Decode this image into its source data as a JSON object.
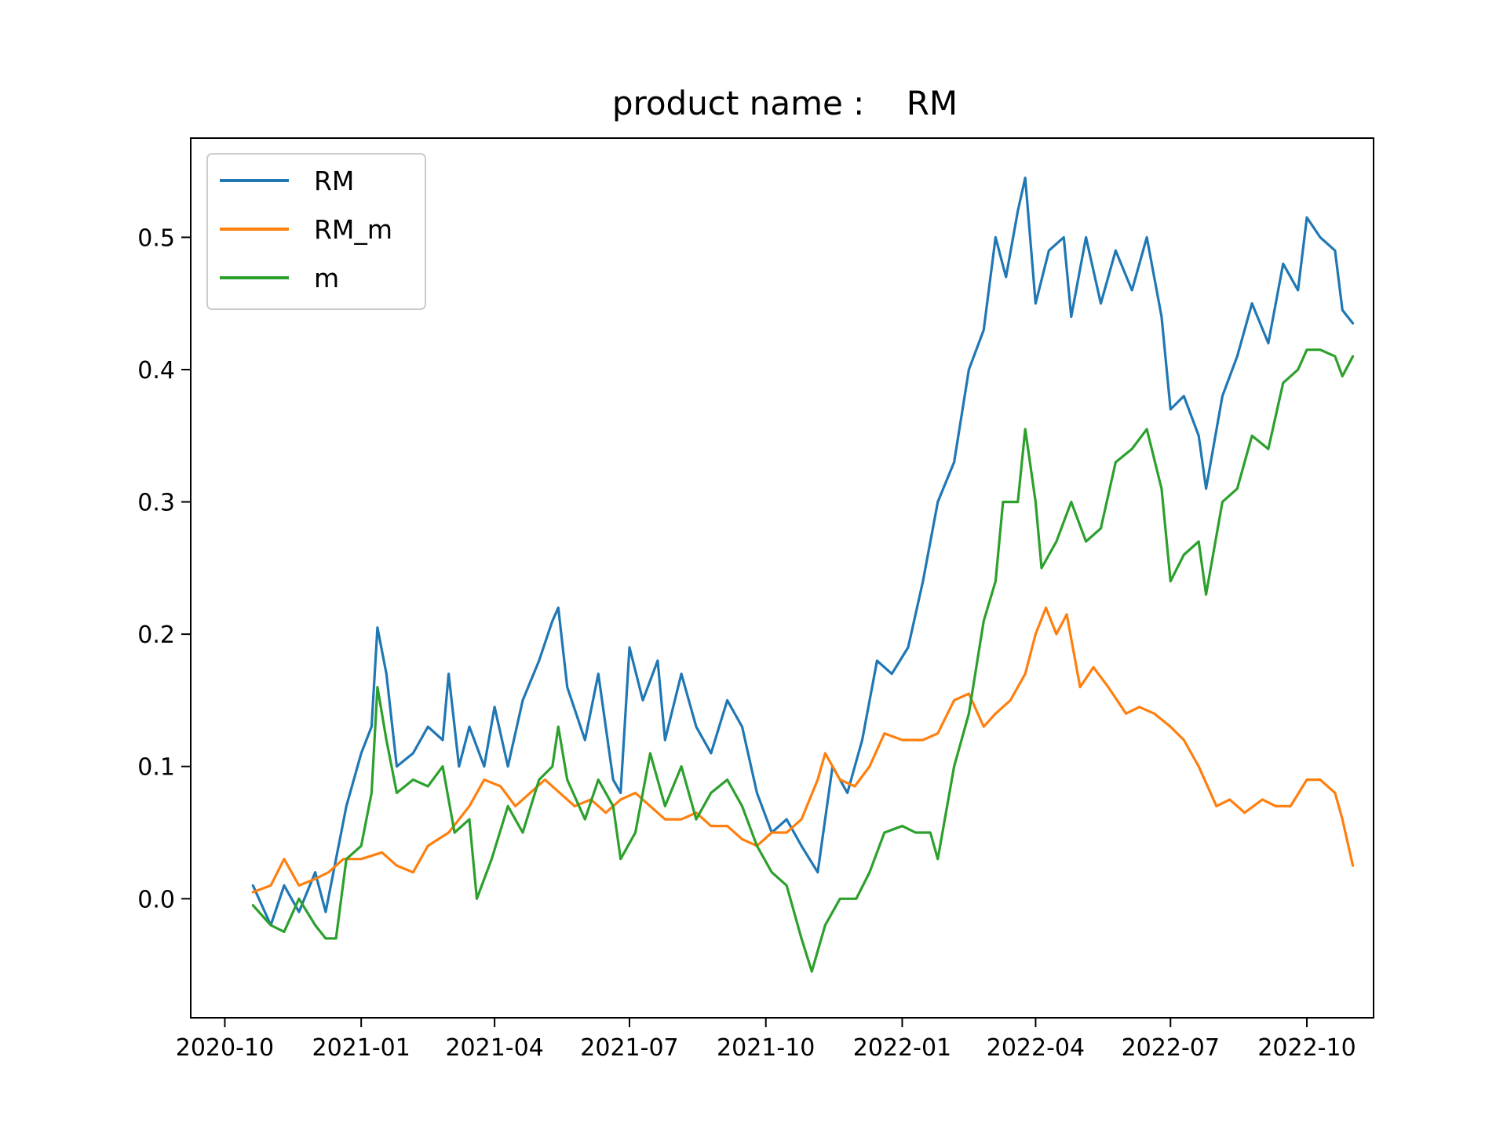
{
  "chart_data": {
    "type": "line",
    "title": "product name :    RM",
    "xlabel": "",
    "ylabel": "",
    "x_range": [
      "2020-09-08",
      "2022-11-15"
    ],
    "ylim": [
      -0.09,
      0.575
    ],
    "x_ticks": [
      "2020-10",
      "2021-01",
      "2021-04",
      "2021-07",
      "2021-10",
      "2022-01",
      "2022-04",
      "2022-07",
      "2022-10"
    ],
    "y_ticks": [
      "0.0",
      "0.1",
      "0.2",
      "0.3",
      "0.4",
      "0.5"
    ],
    "legend_position": "upper-left",
    "grid": false,
    "series": [
      {
        "name": "RM",
        "color": "#1f77b4",
        "points": [
          [
            "2020-10-20",
            0.01
          ],
          [
            "2020-11-01",
            -0.02
          ],
          [
            "2020-11-10",
            0.01
          ],
          [
            "2020-11-20",
            -0.01
          ],
          [
            "2020-12-01",
            0.02
          ],
          [
            "2020-12-08",
            -0.01
          ],
          [
            "2020-12-15",
            0.03
          ],
          [
            "2020-12-22",
            0.07
          ],
          [
            "2021-01-01",
            0.11
          ],
          [
            "2021-01-08",
            0.13
          ],
          [
            "2021-01-12",
            0.205
          ],
          [
            "2021-01-18",
            0.17
          ],
          [
            "2021-01-25",
            0.1
          ],
          [
            "2021-02-05",
            0.11
          ],
          [
            "2021-02-15",
            0.13
          ],
          [
            "2021-02-25",
            0.12
          ],
          [
            "2021-03-01",
            0.17
          ],
          [
            "2021-03-08",
            0.1
          ],
          [
            "2021-03-15",
            0.13
          ],
          [
            "2021-03-25",
            0.1
          ],
          [
            "2021-04-01",
            0.145
          ],
          [
            "2021-04-10",
            0.1
          ],
          [
            "2021-04-20",
            0.15
          ],
          [
            "2021-05-01",
            0.18
          ],
          [
            "2021-05-10",
            0.21
          ],
          [
            "2021-05-14",
            0.22
          ],
          [
            "2021-05-20",
            0.16
          ],
          [
            "2021-06-01",
            0.12
          ],
          [
            "2021-06-10",
            0.17
          ],
          [
            "2021-06-20",
            0.09
          ],
          [
            "2021-06-25",
            0.08
          ],
          [
            "2021-07-01",
            0.19
          ],
          [
            "2021-07-10",
            0.15
          ],
          [
            "2021-07-20",
            0.18
          ],
          [
            "2021-07-25",
            0.12
          ],
          [
            "2021-08-05",
            0.17
          ],
          [
            "2021-08-15",
            0.13
          ],
          [
            "2021-08-25",
            0.11
          ],
          [
            "2021-09-05",
            0.15
          ],
          [
            "2021-09-15",
            0.13
          ],
          [
            "2021-09-25",
            0.08
          ],
          [
            "2021-10-05",
            0.05
          ],
          [
            "2021-10-15",
            0.06
          ],
          [
            "2021-10-25",
            0.04
          ],
          [
            "2021-11-05",
            0.02
          ],
          [
            "2021-11-15",
            0.1
          ],
          [
            "2021-11-25",
            0.08
          ],
          [
            "2021-12-05",
            0.12
          ],
          [
            "2021-12-15",
            0.18
          ],
          [
            "2021-12-25",
            0.17
          ],
          [
            "2022-01-05",
            0.19
          ],
          [
            "2022-01-15",
            0.24
          ],
          [
            "2022-01-25",
            0.3
          ],
          [
            "2022-02-05",
            0.33
          ],
          [
            "2022-02-15",
            0.4
          ],
          [
            "2022-02-25",
            0.43
          ],
          [
            "2022-03-05",
            0.5
          ],
          [
            "2022-03-12",
            0.47
          ],
          [
            "2022-03-20",
            0.52
          ],
          [
            "2022-03-25",
            0.545
          ],
          [
            "2022-04-01",
            0.45
          ],
          [
            "2022-04-10",
            0.49
          ],
          [
            "2022-04-20",
            0.5
          ],
          [
            "2022-04-25",
            0.44
          ],
          [
            "2022-05-05",
            0.5
          ],
          [
            "2022-05-15",
            0.45
          ],
          [
            "2022-05-25",
            0.49
          ],
          [
            "2022-06-05",
            0.46
          ],
          [
            "2022-06-15",
            0.5
          ],
          [
            "2022-06-25",
            0.44
          ],
          [
            "2022-07-01",
            0.37
          ],
          [
            "2022-07-10",
            0.38
          ],
          [
            "2022-07-20",
            0.35
          ],
          [
            "2022-07-25",
            0.31
          ],
          [
            "2022-08-05",
            0.38
          ],
          [
            "2022-08-15",
            0.41
          ],
          [
            "2022-08-25",
            0.45
          ],
          [
            "2022-09-05",
            0.42
          ],
          [
            "2022-09-15",
            0.48
          ],
          [
            "2022-09-25",
            0.46
          ],
          [
            "2022-10-01",
            0.515
          ],
          [
            "2022-10-10",
            0.5
          ],
          [
            "2022-10-20",
            0.49
          ],
          [
            "2022-10-25",
            0.445
          ],
          [
            "2022-11-01",
            0.435
          ]
        ]
      },
      {
        "name": "RM_m",
        "color": "#ff7f0e",
        "points": [
          [
            "2020-10-20",
            0.005
          ],
          [
            "2020-11-01",
            0.01
          ],
          [
            "2020-11-10",
            0.03
          ],
          [
            "2020-11-20",
            0.01
          ],
          [
            "2020-12-01",
            0.015
          ],
          [
            "2020-12-10",
            0.02
          ],
          [
            "2020-12-20",
            0.03
          ],
          [
            "2021-01-01",
            0.03
          ],
          [
            "2021-01-15",
            0.035
          ],
          [
            "2021-01-25",
            0.025
          ],
          [
            "2021-02-05",
            0.02
          ],
          [
            "2021-02-15",
            0.04
          ],
          [
            "2021-03-01",
            0.05
          ],
          [
            "2021-03-15",
            0.07
          ],
          [
            "2021-03-25",
            0.09
          ],
          [
            "2021-04-05",
            0.085
          ],
          [
            "2021-04-15",
            0.07
          ],
          [
            "2021-04-25",
            0.08
          ],
          [
            "2021-05-05",
            0.09
          ],
          [
            "2021-05-15",
            0.08
          ],
          [
            "2021-05-25",
            0.07
          ],
          [
            "2021-06-05",
            0.075
          ],
          [
            "2021-06-15",
            0.065
          ],
          [
            "2021-06-25",
            0.075
          ],
          [
            "2021-07-05",
            0.08
          ],
          [
            "2021-07-15",
            0.07
          ],
          [
            "2021-07-25",
            0.06
          ],
          [
            "2021-08-05",
            0.06
          ],
          [
            "2021-08-15",
            0.065
          ],
          [
            "2021-08-25",
            0.055
          ],
          [
            "2021-09-05",
            0.055
          ],
          [
            "2021-09-15",
            0.045
          ],
          [
            "2021-09-25",
            0.04
          ],
          [
            "2021-10-05",
            0.05
          ],
          [
            "2021-10-15",
            0.05
          ],
          [
            "2021-10-25",
            0.06
          ],
          [
            "2021-11-05",
            0.09
          ],
          [
            "2021-11-10",
            0.11
          ],
          [
            "2021-11-20",
            0.09
          ],
          [
            "2021-11-30",
            0.085
          ],
          [
            "2021-12-10",
            0.1
          ],
          [
            "2021-12-20",
            0.125
          ],
          [
            "2022-01-01",
            0.12
          ],
          [
            "2022-01-15",
            0.12
          ],
          [
            "2022-01-25",
            0.125
          ],
          [
            "2022-02-05",
            0.15
          ],
          [
            "2022-02-15",
            0.155
          ],
          [
            "2022-02-25",
            0.13
          ],
          [
            "2022-03-05",
            0.14
          ],
          [
            "2022-03-15",
            0.15
          ],
          [
            "2022-03-25",
            0.17
          ],
          [
            "2022-04-01",
            0.2
          ],
          [
            "2022-04-08",
            0.22
          ],
          [
            "2022-04-15",
            0.2
          ],
          [
            "2022-04-22",
            0.215
          ],
          [
            "2022-05-01",
            0.16
          ],
          [
            "2022-05-10",
            0.175
          ],
          [
            "2022-05-20",
            0.16
          ],
          [
            "2022-06-01",
            0.14
          ],
          [
            "2022-06-10",
            0.145
          ],
          [
            "2022-06-20",
            0.14
          ],
          [
            "2022-07-01",
            0.13
          ],
          [
            "2022-07-10",
            0.12
          ],
          [
            "2022-07-20",
            0.1
          ],
          [
            "2022-08-01",
            0.07
          ],
          [
            "2022-08-10",
            0.075
          ],
          [
            "2022-08-20",
            0.065
          ],
          [
            "2022-09-01",
            0.075
          ],
          [
            "2022-09-10",
            0.07
          ],
          [
            "2022-09-20",
            0.07
          ],
          [
            "2022-10-01",
            0.09
          ],
          [
            "2022-10-10",
            0.09
          ],
          [
            "2022-10-20",
            0.08
          ],
          [
            "2022-10-25",
            0.06
          ],
          [
            "2022-11-01",
            0.025
          ]
        ]
      },
      {
        "name": "m",
        "color": "#2ca02c",
        "points": [
          [
            "2020-10-20",
            -0.005
          ],
          [
            "2020-11-01",
            -0.02
          ],
          [
            "2020-11-10",
            -0.025
          ],
          [
            "2020-11-20",
            0.0
          ],
          [
            "2020-12-01",
            -0.02
          ],
          [
            "2020-12-08",
            -0.03
          ],
          [
            "2020-12-15",
            -0.03
          ],
          [
            "2020-12-22",
            0.03
          ],
          [
            "2021-01-01",
            0.04
          ],
          [
            "2021-01-08",
            0.08
          ],
          [
            "2021-01-12",
            0.16
          ],
          [
            "2021-01-18",
            0.12
          ],
          [
            "2021-01-25",
            0.08
          ],
          [
            "2021-02-05",
            0.09
          ],
          [
            "2021-02-15",
            0.085
          ],
          [
            "2021-02-25",
            0.1
          ],
          [
            "2021-03-05",
            0.05
          ],
          [
            "2021-03-15",
            0.06
          ],
          [
            "2021-03-20",
            0.0
          ],
          [
            "2021-03-30",
            0.03
          ],
          [
            "2021-04-10",
            0.07
          ],
          [
            "2021-04-20",
            0.05
          ],
          [
            "2021-05-01",
            0.09
          ],
          [
            "2021-05-10",
            0.1
          ],
          [
            "2021-05-14",
            0.13
          ],
          [
            "2021-05-20",
            0.09
          ],
          [
            "2021-06-01",
            0.06
          ],
          [
            "2021-06-10",
            0.09
          ],
          [
            "2021-06-20",
            0.07
          ],
          [
            "2021-06-25",
            0.03
          ],
          [
            "2021-07-05",
            0.05
          ],
          [
            "2021-07-15",
            0.11
          ],
          [
            "2021-07-25",
            0.07
          ],
          [
            "2021-08-05",
            0.1
          ],
          [
            "2021-08-15",
            0.06
          ],
          [
            "2021-08-25",
            0.08
          ],
          [
            "2021-09-05",
            0.09
          ],
          [
            "2021-09-15",
            0.07
          ],
          [
            "2021-09-25",
            0.04
          ],
          [
            "2021-10-05",
            0.02
          ],
          [
            "2021-10-15",
            0.01
          ],
          [
            "2021-10-25",
            -0.03
          ],
          [
            "2021-11-01",
            -0.055
          ],
          [
            "2021-11-10",
            -0.02
          ],
          [
            "2021-11-20",
            0.0
          ],
          [
            "2021-12-01",
            0.0
          ],
          [
            "2021-12-10",
            0.02
          ],
          [
            "2021-12-20",
            0.05
          ],
          [
            "2022-01-01",
            0.055
          ],
          [
            "2022-01-10",
            0.05
          ],
          [
            "2022-01-20",
            0.05
          ],
          [
            "2022-01-25",
            0.03
          ],
          [
            "2022-02-05",
            0.1
          ],
          [
            "2022-02-15",
            0.14
          ],
          [
            "2022-02-25",
            0.21
          ],
          [
            "2022-03-05",
            0.24
          ],
          [
            "2022-03-10",
            0.3
          ],
          [
            "2022-03-20",
            0.3
          ],
          [
            "2022-03-25",
            0.355
          ],
          [
            "2022-04-01",
            0.3
          ],
          [
            "2022-04-05",
            0.25
          ],
          [
            "2022-04-15",
            0.27
          ],
          [
            "2022-04-25",
            0.3
          ],
          [
            "2022-05-05",
            0.27
          ],
          [
            "2022-05-15",
            0.28
          ],
          [
            "2022-05-25",
            0.33
          ],
          [
            "2022-06-05",
            0.34
          ],
          [
            "2022-06-15",
            0.355
          ],
          [
            "2022-06-25",
            0.31
          ],
          [
            "2022-07-01",
            0.24
          ],
          [
            "2022-07-10",
            0.26
          ],
          [
            "2022-07-20",
            0.27
          ],
          [
            "2022-07-25",
            0.23
          ],
          [
            "2022-08-05",
            0.3
          ],
          [
            "2022-08-15",
            0.31
          ],
          [
            "2022-08-25",
            0.35
          ],
          [
            "2022-09-05",
            0.34
          ],
          [
            "2022-09-15",
            0.39
          ],
          [
            "2022-09-25",
            0.4
          ],
          [
            "2022-10-01",
            0.415
          ],
          [
            "2022-10-10",
            0.415
          ],
          [
            "2022-10-20",
            0.41
          ],
          [
            "2022-10-25",
            0.395
          ],
          [
            "2022-11-01",
            0.41
          ]
        ]
      }
    ]
  }
}
